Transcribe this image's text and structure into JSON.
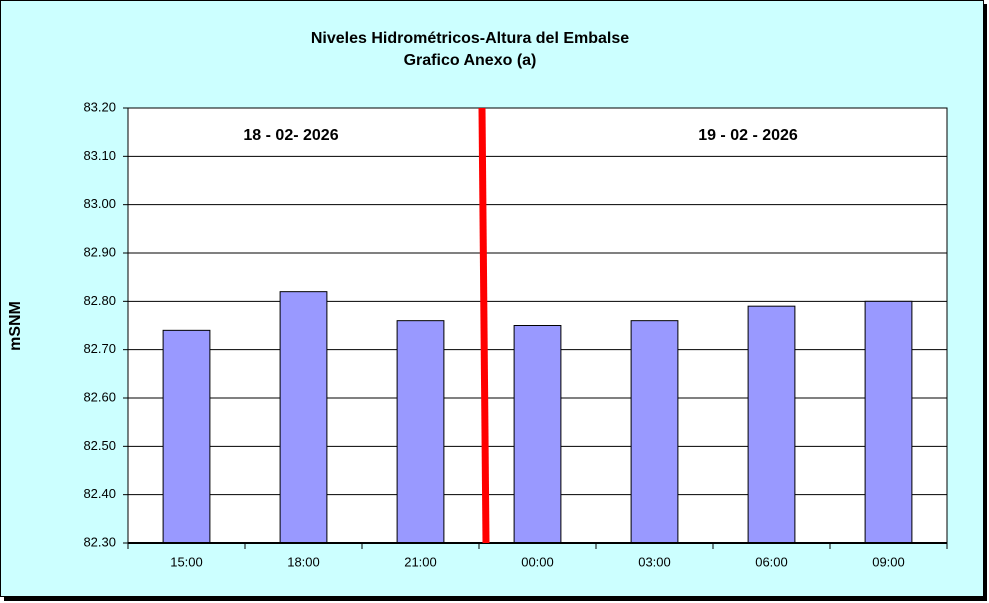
{
  "chart_data": {
    "type": "bar",
    "title": "Niveles Hidrométricos-Altura del Embalse",
    "subtitle": "Grafico Anexo (a)",
    "y_label": "mSNM",
    "annotations": [
      "18 - 02- 2026",
      "19 - 02 - 2026"
    ],
    "categories": [
      "15:00",
      "18:00",
      "21:00",
      "00:00",
      "03:00",
      "06:00",
      "09:00"
    ],
    "values": [
      82.74,
      82.82,
      82.76,
      82.75,
      82.76,
      82.79,
      82.8
    ],
    "color": "#9999ff",
    "ylim": [
      82.3,
      83.2
    ],
    "yticks": [
      {
        "value": 82.3,
        "label": "82.30"
      },
      {
        "value": 82.4,
        "label": "82.40"
      },
      {
        "value": 82.5,
        "label": "82.50"
      },
      {
        "value": 82.6,
        "label": "82.60"
      },
      {
        "value": 82.7,
        "label": "82.70"
      },
      {
        "value": 82.8,
        "label": "82.80"
      },
      {
        "value": 82.9,
        "label": "82.90"
      },
      {
        "value": 83.0,
        "label": "83.00"
      },
      {
        "value": 83.1,
        "label": "83.10"
      },
      {
        "value": 83.2,
        "label": "83.20"
      }
    ],
    "grid": true
  }
}
